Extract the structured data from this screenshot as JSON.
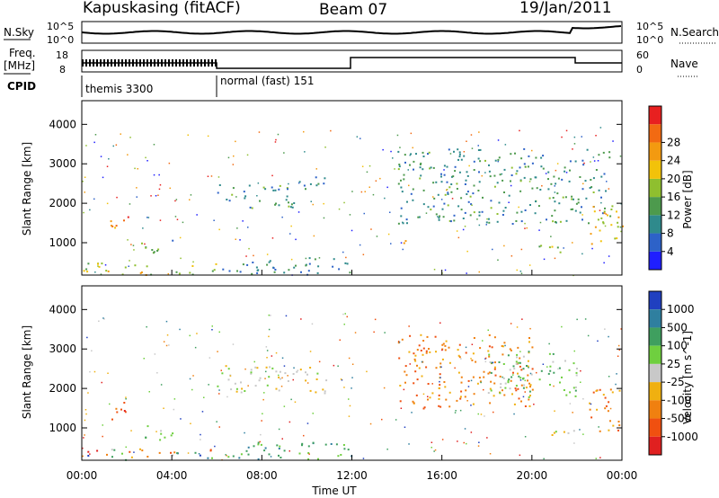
{
  "header": {
    "station": "Kapuskasing (fitACF)",
    "beam": "Beam 07",
    "date": "19/Jan/2011"
  },
  "summary": {
    "nsky_label": "N.Sky",
    "nsearch_label": "N.Search",
    "freq_label_top": "Freq.",
    "freq_label_bottom": "[MHz]",
    "nave_label": "Nave",
    "cpid_label": "CPID",
    "noise_ticks": [
      "10^5",
      "10^0"
    ],
    "freq_ticks": [
      "18",
      "8"
    ],
    "nave_ticks": [
      "60",
      "0"
    ],
    "cpid_modes": [
      {
        "name": "themis 3300",
        "start_hour": 0,
        "end_hour": 6
      },
      {
        "name": "normal (fast) 151",
        "start_hour": 6,
        "end_hour": 24
      }
    ]
  },
  "chart_data": [
    {
      "type": "heatmap",
      "parameter": "power",
      "ylabel": "Slant Range [km]",
      "xlim": [
        0,
        24
      ],
      "ylim": [
        180,
        4600
      ],
      "yticks": [
        "1000",
        "2000",
        "3000",
        "4000"
      ],
      "colorbar": {
        "label": "Power [dB]",
        "ticks": [
          "4",
          "8",
          "12",
          "16",
          "20",
          "24",
          "28"
        ],
        "colors": [
          "#1f1fff",
          "#2d62c8",
          "#2f8a8c",
          "#4d9a4d",
          "#8fbf2f",
          "#f2c20a",
          "#f39a10",
          "#f26a12",
          "#e82020"
        ]
      },
      "regions": [
        {
          "h0": 0.0,
          "h1": 6.0,
          "r0": 200,
          "r1": 500,
          "intensity": 0.55
        },
        {
          "h0": 1.2,
          "h1": 2.2,
          "r0": 1200,
          "r1": 1700,
          "intensity": 0.85
        },
        {
          "h0": 2.5,
          "h1": 4.0,
          "r0": 700,
          "r1": 1100,
          "intensity": 0.35
        },
        {
          "h0": 6.0,
          "h1": 9.5,
          "r0": 1900,
          "r1": 2500,
          "intensity": 0.3
        },
        {
          "h0": 8.5,
          "h1": 9.3,
          "r0": 1850,
          "r1": 2100,
          "intensity": 0.5
        },
        {
          "h0": 9.5,
          "h1": 11.0,
          "r0": 2300,
          "r1": 2700,
          "intensity": 0.25
        },
        {
          "h0": 6.0,
          "h1": 12.0,
          "r0": 200,
          "r1": 650,
          "intensity": 0.25
        },
        {
          "h0": 14.2,
          "h1": 14.6,
          "r0": 1000,
          "r1": 1300,
          "intensity": 0.7
        },
        {
          "h0": 14.0,
          "h1": 23.5,
          "r0": 1500,
          "r1": 3400,
          "intensity": 0.3
        },
        {
          "h0": 20.0,
          "h1": 22.0,
          "r0": 750,
          "r1": 950,
          "intensity": 0.45
        },
        {
          "h0": 22.5,
          "h1": 24.0,
          "r0": 900,
          "r1": 2000,
          "intensity": 0.6
        }
      ]
    },
    {
      "type": "heatmap",
      "parameter": "velocity",
      "xlabel": "Time UT",
      "ylabel": "Slant Range [km]",
      "xlim": [
        0,
        24
      ],
      "ylim": [
        180,
        4600
      ],
      "xticks": [
        "00:00",
        "04:00",
        "08:00",
        "12:00",
        "16:00",
        "20:00",
        "00:00"
      ],
      "yticks": [
        "1000",
        "2000",
        "3000",
        "4000"
      ],
      "colorbar": {
        "label": "Velocity [m s^-1]",
        "ticks": [
          "1000",
          "500",
          "100",
          "25",
          "-25",
          "-100",
          "-500",
          "-1000"
        ],
        "colors": [
          "#2040c0",
          "#2f7f9f",
          "#3f9f5f",
          "#6fcf3f",
          "#c8c8c8",
          "#f0b010",
          "#f08010",
          "#f05010",
          "#e02020"
        ]
      },
      "regions": [
        {
          "h0": 0.0,
          "h1": 6.0,
          "r0": 200,
          "r1": 500,
          "vel": "mixed"
        },
        {
          "h0": 1.2,
          "h1": 2.2,
          "r0": 1200,
          "r1": 1700,
          "vel": -600
        },
        {
          "h0": 2.5,
          "h1": 4.0,
          "r0": 700,
          "r1": 1100,
          "vel": 50
        },
        {
          "h0": 6.0,
          "h1": 11.0,
          "r0": 1900,
          "r1": 2600,
          "vel": 0
        },
        {
          "h0": 6.0,
          "h1": 12.0,
          "r0": 200,
          "r1": 650,
          "vel": 150
        },
        {
          "h0": 14.0,
          "h1": 20.0,
          "r0": 1500,
          "r1": 3400,
          "vel": -300
        },
        {
          "h0": 18.0,
          "h1": 22.0,
          "r0": 1800,
          "r1": 3000,
          "vel": 80
        },
        {
          "h0": 20.0,
          "h1": 22.0,
          "r0": 750,
          "r1": 950,
          "vel": 0
        },
        {
          "h0": 22.5,
          "h1": 24.0,
          "r0": 900,
          "r1": 2000,
          "vel": -500
        }
      ]
    }
  ]
}
